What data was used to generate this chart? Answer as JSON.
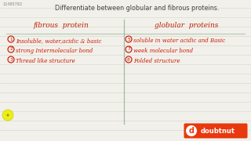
{
  "title": "Differentiate between globular and fibrous proteins.",
  "id_text": "11485782",
  "col1_header": "fibrous  protein",
  "col2_header": "globular  proteins",
  "col1_items": [
    "Insoluble, water,acidic & basic",
    "strong Intermolecular bond",
    "Thread like structure"
  ],
  "col2_items": [
    "soluble in water acidic and Basic",
    "week molecular bond",
    "Folded structure"
  ],
  "col2_numbers": [
    "5",
    "7",
    "8"
  ],
  "bg_color": "#f2f0eb",
  "line_color_h": "#b8cdb8",
  "line_color_v": "#a0bba0",
  "ruled_line_color": "#d8ddd0",
  "text_color": "#cc1a00",
  "header_color": "#bb2200",
  "title_color": "#444444",
  "id_color": "#888888",
  "yellow_circle": "#eeee00"
}
